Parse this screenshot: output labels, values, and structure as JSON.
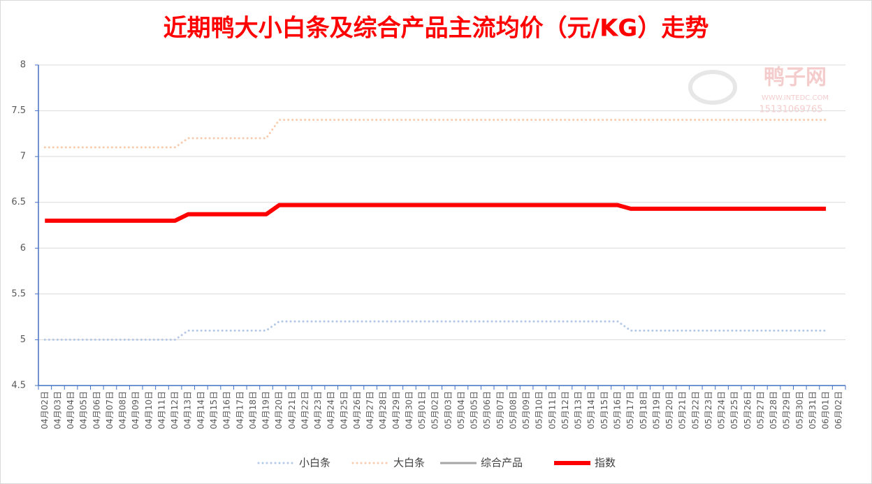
{
  "chart_data": {
    "type": "line",
    "title": "近期鸭大小白条及综合产品主流均价（元/KG）走势",
    "watermark": {
      "logo": "鸭子网",
      "site": "WWW.INTEDC.COM",
      "phone": "15131069765"
    },
    "categories": [
      "04月02日",
      "04月03日",
      "04月04日",
      "04月05日",
      "04月06日",
      "04月07日",
      "04月08日",
      "04月09日",
      "04月10日",
      "04月11日",
      "04月12日",
      "04月13日",
      "04月14日",
      "04月15日",
      "04月16日",
      "04月17日",
      "04月18日",
      "04月19日",
      "04月20日",
      "04月21日",
      "04月22日",
      "04月23日",
      "04月24日",
      "04月25日",
      "04月26日",
      "04月27日",
      "04月28日",
      "04月29日",
      "04月30日",
      "05月01日",
      "05月02日",
      "05月03日",
      "05月04日",
      "05月05日",
      "05月06日",
      "05月07日",
      "05月08日",
      "05月09日",
      "05月10日",
      "05月11日",
      "05月12日",
      "05月13日",
      "05月14日",
      "05月15日",
      "05月16日",
      "05月17日",
      "05月18日",
      "05月19日",
      "05月20日",
      "05月21日",
      "05月22日",
      "05月23日",
      "05月24日",
      "05月25日",
      "05月26日",
      "05月27日",
      "05月28日",
      "05月29日",
      "05月30日",
      "05月31日",
      "06月01日",
      "06月02日"
    ],
    "series": [
      {
        "name": "小白条",
        "color": "#b4c7e7",
        "style": "dotted",
        "values": [
          5,
          5,
          5,
          5,
          5,
          5,
          5,
          5,
          5,
          5,
          5,
          5.1,
          5.1,
          5.1,
          5.1,
          5.1,
          5.1,
          5.1,
          5.2,
          5.2,
          5.2,
          5.2,
          5.2,
          5.2,
          5.2,
          5.2,
          5.2,
          5.2,
          5.2,
          5.2,
          5.2,
          5.2,
          5.2,
          5.2,
          5.2,
          5.2,
          5.2,
          5.2,
          5.2,
          5.2,
          5.2,
          5.2,
          5.2,
          5.2,
          5.2,
          5.1,
          5.1,
          5.1,
          5.1,
          5.1,
          5.1,
          5.1,
          5.1,
          5.1,
          5.1,
          5.1,
          5.1,
          5.1,
          5.1,
          5.1,
          5.1,
          null
        ]
      },
      {
        "name": "大白条",
        "color": "#f8cbad",
        "style": "dotted",
        "values": [
          7.1,
          7.1,
          7.1,
          7.1,
          7.1,
          7.1,
          7.1,
          7.1,
          7.1,
          7.1,
          7.1,
          7.2,
          7.2,
          7.2,
          7.2,
          7.2,
          7.2,
          7.2,
          7.4,
          7.4,
          7.4,
          7.4,
          7.4,
          7.4,
          7.4,
          7.4,
          7.4,
          7.4,
          7.4,
          7.4,
          7.4,
          7.4,
          7.4,
          7.4,
          7.4,
          7.4,
          7.4,
          7.4,
          7.4,
          7.4,
          7.4,
          7.4,
          7.4,
          7.4,
          7.4,
          7.4,
          7.4,
          7.4,
          7.4,
          7.4,
          7.4,
          7.4,
          7.4,
          7.4,
          7.4,
          7.4,
          7.4,
          7.4,
          7.4,
          7.4,
          7.4,
          null
        ]
      },
      {
        "name": "综合产品",
        "color": "#a5a5a5",
        "style": "solid",
        "values": [
          6.3,
          6.3,
          6.3,
          6.3,
          6.3,
          6.3,
          6.3,
          6.3,
          6.3,
          6.3,
          6.3,
          6.37,
          6.37,
          6.37,
          6.37,
          6.37,
          6.37,
          6.37,
          6.47,
          6.47,
          6.47,
          6.47,
          6.47,
          6.47,
          6.47,
          6.47,
          6.47,
          6.47,
          6.47,
          6.47,
          6.47,
          6.47,
          6.47,
          6.47,
          6.47,
          6.47,
          6.47,
          6.47,
          6.47,
          6.47,
          6.47,
          6.47,
          6.47,
          6.47,
          6.47,
          6.43,
          6.43,
          6.43,
          6.43,
          6.43,
          6.43,
          6.43,
          6.43,
          6.43,
          6.43,
          6.43,
          6.43,
          6.43,
          6.43,
          6.43,
          6.43,
          null
        ]
      },
      {
        "name": "指数",
        "color": "#ff0000",
        "style": "thick",
        "values": [
          6.3,
          6.3,
          6.3,
          6.3,
          6.3,
          6.3,
          6.3,
          6.3,
          6.3,
          6.3,
          6.3,
          6.37,
          6.37,
          6.37,
          6.37,
          6.37,
          6.37,
          6.37,
          6.47,
          6.47,
          6.47,
          6.47,
          6.47,
          6.47,
          6.47,
          6.47,
          6.47,
          6.47,
          6.47,
          6.47,
          6.47,
          6.47,
          6.47,
          6.47,
          6.47,
          6.47,
          6.47,
          6.47,
          6.47,
          6.47,
          6.47,
          6.47,
          6.47,
          6.47,
          6.47,
          6.43,
          6.43,
          6.43,
          6.43,
          6.43,
          6.43,
          6.43,
          6.43,
          6.43,
          6.43,
          6.43,
          6.43,
          6.43,
          6.43,
          6.43,
          6.43,
          null
        ]
      }
    ],
    "ylim": [
      4.5,
      8
    ],
    "yticks": [
      4.5,
      5,
      5.5,
      6,
      6.5,
      7,
      7.5,
      8
    ],
    "grid": true
  }
}
